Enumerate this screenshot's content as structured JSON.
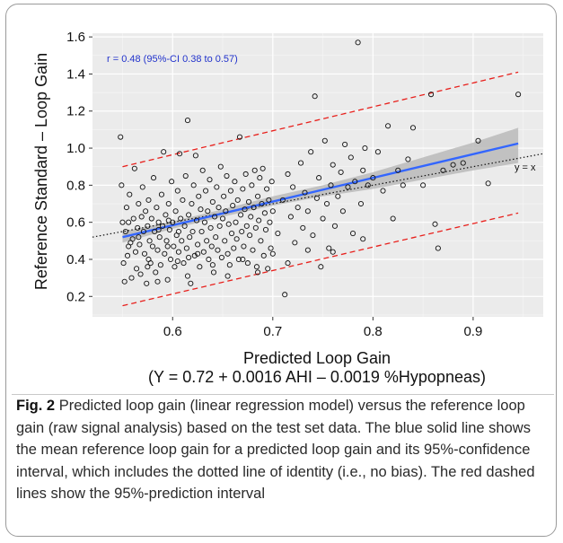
{
  "chart_data": {
    "type": "scatter",
    "title": "",
    "xlabel": "Predicted Loop Gain",
    "xlabel_sub": "(Y = 0.72 + 0.0016 AHI – 0.0019 %Hypopneas)",
    "ylabel": "Reference Standard – Loop Gain",
    "xlim": [
      0.52,
      0.97
    ],
    "ylim": [
      0.09,
      1.62
    ],
    "x_ticks": [
      0.6,
      0.7,
      0.8,
      0.9
    ],
    "x_tick_labels": [
      "0.6",
      "0.7",
      "0.8",
      "0.9"
    ],
    "y_ticks": [
      0.2,
      0.4,
      0.6,
      0.8,
      1.0,
      1.2,
      1.4,
      1.6
    ],
    "y_tick_labels": [
      "0.2",
      "0.4",
      "0.6",
      "0.8",
      "1.0",
      "1.2",
      "1.4",
      "1.6"
    ],
    "grid": true,
    "annotation": "r = 0.48 (95%-CI 0.38 to 0.57)",
    "identity_label": "y = x",
    "colors": {
      "panel": "#ebebeb",
      "grid_major": "#ffffff",
      "regression": "#3366ff",
      "confidence_band": "#b3b3b3",
      "prediction_interval": "#e8201c",
      "identity": "#111111",
      "annotation": "#2233cc"
    },
    "regression_line": {
      "x": [
        0.55,
        0.945
      ],
      "y": [
        0.52,
        1.025
      ]
    },
    "confidence_band": {
      "x": [
        0.55,
        0.6,
        0.65,
        0.7,
        0.75,
        0.8,
        0.85,
        0.9,
        0.945
      ],
      "lower": [
        0.49,
        0.565,
        0.63,
        0.69,
        0.74,
        0.78,
        0.83,
        0.88,
        0.92
      ],
      "upper": [
        0.55,
        0.605,
        0.67,
        0.74,
        0.8,
        0.87,
        0.95,
        1.03,
        1.11
      ]
    },
    "prediction_upper": {
      "x": [
        0.55,
        0.945
      ],
      "y": [
        0.9,
        1.41
      ]
    },
    "prediction_lower": {
      "x": [
        0.55,
        0.945
      ],
      "y": [
        0.15,
        0.65
      ]
    },
    "identity_line": {
      "x": [
        0.52,
        0.97
      ],
      "y": [
        0.52,
        0.97
      ]
    },
    "points": [
      [
        0.548,
        1.06
      ],
      [
        0.549,
        0.8
      ],
      [
        0.55,
        0.6
      ],
      [
        0.551,
        0.38
      ],
      [
        0.552,
        0.28
      ],
      [
        0.553,
        0.55
      ],
      [
        0.554,
        0.68
      ],
      [
        0.555,
        0.42
      ],
      [
        0.556,
        0.6
      ],
      [
        0.557,
        0.75
      ],
      [
        0.558,
        0.49
      ],
      [
        0.559,
        0.3
      ],
      [
        0.56,
        0.51
      ],
      [
        0.561,
        0.62
      ],
      [
        0.562,
        0.89
      ],
      [
        0.563,
        0.44
      ],
      [
        0.564,
        0.35
      ],
      [
        0.565,
        0.57
      ],
      [
        0.566,
        0.7
      ],
      [
        0.567,
        0.48
      ],
      [
        0.568,
        0.32
      ],
      [
        0.569,
        0.63
      ],
      [
        0.57,
        0.79
      ],
      [
        0.571,
        0.55
      ],
      [
        0.572,
        0.43
      ],
      [
        0.573,
        0.66
      ],
      [
        0.574,
        0.27
      ],
      [
        0.575,
        0.58
      ],
      [
        0.576,
        0.72
      ],
      [
        0.577,
        0.5
      ],
      [
        0.578,
        0.38
      ],
      [
        0.579,
        0.62
      ],
      [
        0.58,
        0.47
      ],
      [
        0.581,
        0.84
      ],
      [
        0.582,
        0.55
      ],
      [
        0.583,
        0.33
      ],
      [
        0.584,
        0.68
      ],
      [
        0.585,
        0.45
      ],
      [
        0.586,
        0.6
      ],
      [
        0.587,
        0.52
      ],
      [
        0.588,
        0.37
      ],
      [
        0.589,
        0.75
      ],
      [
        0.59,
        0.58
      ],
      [
        0.591,
        0.98
      ],
      [
        0.592,
        0.43
      ],
      [
        0.593,
        0.64
      ],
      [
        0.594,
        0.5
      ],
      [
        0.595,
        0.29
      ],
      [
        0.596,
        0.7
      ],
      [
        0.597,
        0.56
      ],
      [
        0.598,
        0.4
      ],
      [
        0.599,
        0.82
      ],
      [
        0.6,
        0.6
      ],
      [
        0.601,
        0.47
      ],
      [
        0.602,
        0.36
      ],
      [
        0.603,
        0.66
      ],
      [
        0.604,
        0.53
      ],
      [
        0.605,
        0.77
      ],
      [
        0.606,
        0.44
      ],
      [
        0.607,
        0.97
      ],
      [
        0.608,
        0.62
      ],
      [
        0.609,
        0.5
      ],
      [
        0.61,
        0.72
      ],
      [
        0.611,
        0.38
      ],
      [
        0.612,
        0.58
      ],
      [
        0.613,
        0.85
      ],
      [
        0.614,
        0.46
      ],
      [
        0.615,
        1.15
      ],
      [
        0.616,
        0.64
      ],
      [
        0.617,
        0.52
      ],
      [
        0.618,
        0.27
      ],
      [
        0.619,
        0.7
      ],
      [
        0.62,
        0.55
      ],
      [
        0.621,
        0.8
      ],
      [
        0.622,
        0.42
      ],
      [
        0.623,
        0.96
      ],
      [
        0.624,
        0.61
      ],
      [
        0.625,
        0.48
      ],
      [
        0.626,
        0.74
      ],
      [
        0.627,
        0.36
      ],
      [
        0.628,
        0.67
      ],
      [
        0.629,
        0.55
      ],
      [
        0.63,
        0.88
      ],
      [
        0.631,
        0.44
      ],
      [
        0.632,
        0.6
      ],
      [
        0.633,
        0.77
      ],
      [
        0.634,
        0.5
      ],
      [
        0.635,
        0.66
      ],
      [
        0.636,
        0.4
      ],
      [
        0.637,
        0.83
      ],
      [
        0.638,
        0.57
      ],
      [
        0.639,
        0.47
      ],
      [
        0.64,
        0.71
      ],
      [
        0.641,
        0.33
      ],
      [
        0.642,
        0.63
      ],
      [
        0.643,
        0.52
      ],
      [
        0.644,
        0.79
      ],
      [
        0.645,
        0.45
      ],
      [
        0.646,
        0.68
      ],
      [
        0.647,
        0.58
      ],
      [
        0.648,
        0.9
      ],
      [
        0.649,
        0.41
      ],
      [
        0.65,
        0.62
      ],
      [
        0.651,
        0.74
      ],
      [
        0.652,
        0.5
      ],
      [
        0.653,
        0.66
      ],
      [
        0.654,
        0.85
      ],
      [
        0.655,
        0.43
      ],
      [
        0.656,
        0.59
      ],
      [
        0.657,
        0.37
      ],
      [
        0.658,
        0.77
      ],
      [
        0.659,
        0.54
      ],
      [
        0.66,
        0.69
      ],
      [
        0.661,
        0.46
      ],
      [
        0.662,
        0.82
      ],
      [
        0.663,
        0.6
      ],
      [
        0.664,
        0.51
      ],
      [
        0.665,
        0.72
      ],
      [
        0.666,
        0.4
      ],
      [
        0.667,
        1.06
      ],
      [
        0.668,
        0.64
      ],
      [
        0.669,
        0.55
      ],
      [
        0.67,
        0.78
      ],
      [
        0.671,
        0.47
      ],
      [
        0.672,
        0.67
      ],
      [
        0.673,
        0.86
      ],
      [
        0.674,
        0.58
      ],
      [
        0.675,
        0.38
      ],
      [
        0.676,
        0.71
      ],
      [
        0.677,
        0.53
      ],
      [
        0.678,
        0.63
      ],
      [
        0.679,
        0.8
      ],
      [
        0.68,
        0.45
      ],
      [
        0.681,
        0.68
      ],
      [
        0.682,
        0.88
      ],
      [
        0.683,
        0.57
      ],
      [
        0.684,
        0.36
      ],
      [
        0.685,
        0.74
      ],
      [
        0.686,
        0.61
      ],
      [
        0.687,
        0.84
      ],
      [
        0.688,
        0.5
      ],
      [
        0.689,
        0.7
      ],
      [
        0.69,
        0.89
      ],
      [
        0.691,
        0.42
      ],
      [
        0.692,
        0.65
      ],
      [
        0.693,
        0.56
      ],
      [
        0.694,
        0.78
      ],
      [
        0.695,
        0.35
      ],
      [
        0.696,
        0.72
      ],
      [
        0.697,
        0.6
      ],
      [
        0.698,
        0.46
      ],
      [
        0.699,
        0.82
      ],
      [
        0.7,
        0.66
      ],
      [
        0.705,
        0.54
      ],
      [
        0.71,
        0.72
      ],
      [
        0.712,
        0.21
      ],
      [
        0.715,
        0.86
      ],
      [
        0.718,
        0.63
      ],
      [
        0.72,
        0.79
      ],
      [
        0.722,
        0.49
      ],
      [
        0.725,
        0.68
      ],
      [
        0.728,
        0.92
      ],
      [
        0.73,
        0.57
      ],
      [
        0.732,
        0.76
      ],
      [
        0.735,
        0.66
      ],
      [
        0.738,
        0.98
      ],
      [
        0.74,
        0.53
      ],
      [
        0.742,
        1.28
      ],
      [
        0.744,
        0.73
      ],
      [
        0.746,
        0.84
      ],
      [
        0.748,
        0.36
      ],
      [
        0.75,
        0.62
      ],
      [
        0.752,
        1.04
      ],
      [
        0.754,
        0.7
      ],
      [
        0.756,
        0.46
      ],
      [
        0.758,
        0.8
      ],
      [
        0.76,
        0.91
      ],
      [
        0.762,
        0.58
      ],
      [
        0.765,
        0.74
      ],
      [
        0.768,
        0.87
      ],
      [
        0.77,
        0.66
      ],
      [
        0.772,
        1.02
      ],
      [
        0.775,
        0.79
      ],
      [
        0.778,
        0.95
      ],
      [
        0.78,
        0.54
      ],
      [
        0.782,
        0.82
      ],
      [
        0.785,
        1.57
      ],
      [
        0.788,
        0.7
      ],
      [
        0.79,
        0.88
      ],
      [
        0.792,
        1.0
      ],
      [
        0.795,
        0.8
      ],
      [
        0.8,
        0.84
      ],
      [
        0.805,
        0.98
      ],
      [
        0.81,
        0.77
      ],
      [
        0.815,
        1.12
      ],
      [
        0.82,
        0.62
      ],
      [
        0.825,
        0.88
      ],
      [
        0.83,
        0.8
      ],
      [
        0.835,
        0.94
      ],
      [
        0.84,
        1.11
      ],
      [
        0.85,
        0.8
      ],
      [
        0.858,
        1.29
      ],
      [
        0.862,
        0.59
      ],
      [
        0.865,
        0.46
      ],
      [
        0.87,
        0.88
      ],
      [
        0.88,
        0.91
      ],
      [
        0.89,
        0.92
      ],
      [
        0.905,
        1.04
      ],
      [
        0.915,
        0.81
      ],
      [
        0.945,
        1.29
      ],
      [
        0.575,
        0.36
      ],
      [
        0.585,
        0.28
      ],
      [
        0.595,
        0.47
      ],
      [
        0.605,
        0.39
      ],
      [
        0.615,
        0.31
      ],
      [
        0.625,
        0.43
      ],
      [
        0.64,
        0.37
      ],
      [
        0.655,
        0.31
      ],
      [
        0.67,
        0.4
      ],
      [
        0.685,
        0.33
      ],
      [
        0.7,
        0.43
      ],
      [
        0.715,
        0.38
      ],
      [
        0.735,
        0.45
      ],
      [
        0.76,
        0.44
      ],
      [
        0.79,
        0.51
      ],
      [
        0.556,
        0.47
      ],
      [
        0.566,
        0.52
      ],
      [
        0.576,
        0.4
      ],
      [
        0.586,
        0.56
      ],
      [
        0.596,
        0.61
      ],
      [
        0.606,
        0.55
      ],
      [
        0.616,
        0.41
      ]
    ]
  },
  "caption": {
    "label": "Fig. 2",
    "text": "Predicted loop gain (linear regression model) versus the reference loop gain (raw signal analysis) based on the test set data. The blue solid line shows the mean reference loop gain for a predicted loop gain and its 95%-confidence interval, which includes the dotted line of identity (i.e., no bias). The red dashed lines show the 95%-prediction interval"
  }
}
